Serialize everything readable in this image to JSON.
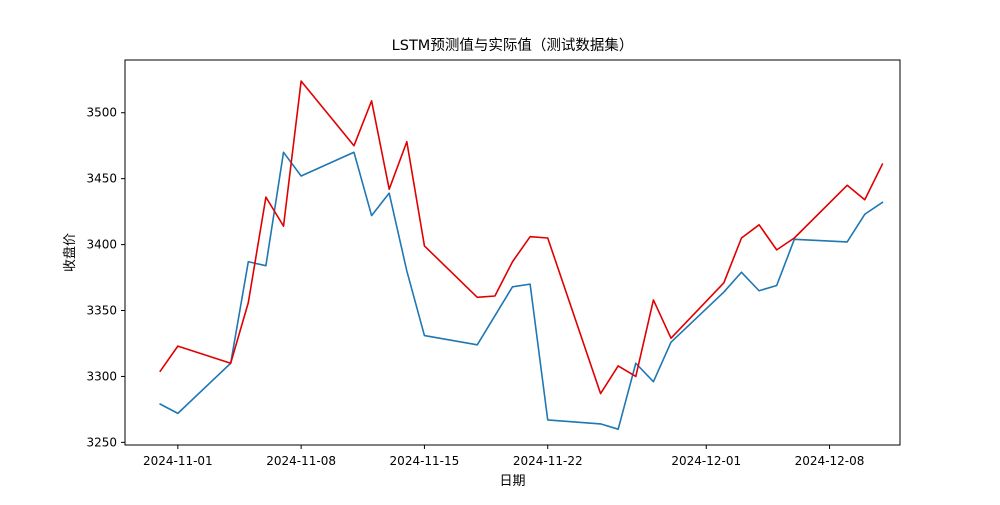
{
  "chart_data": {
    "type": "line",
    "title": "LSTM预测值与实际值（测试数据集）",
    "xlabel": "日期",
    "ylabel": "收盘价",
    "x_axis_type": "date",
    "xlim": [
      "2024-10-29",
      "2024-12-12"
    ],
    "ylim": [
      3248,
      3540
    ],
    "xticks": [
      "2024-11-01",
      "2024-11-08",
      "2024-11-15",
      "2024-11-22",
      "2024-12-01",
      "2024-12-08"
    ],
    "yticks": [
      3250,
      3300,
      3350,
      3400,
      3450,
      3500
    ],
    "grid": false,
    "legend": "none",
    "x": [
      "2024-10-31",
      "2024-11-01",
      "2024-11-04",
      "2024-11-05",
      "2024-11-06",
      "2024-11-07",
      "2024-11-08",
      "2024-11-11",
      "2024-11-12",
      "2024-11-13",
      "2024-11-14",
      "2024-11-15",
      "2024-11-18",
      "2024-11-19",
      "2024-11-20",
      "2024-11-21",
      "2024-11-22",
      "2024-11-25",
      "2024-11-26",
      "2024-11-27",
      "2024-11-28",
      "2024-11-29",
      "2024-12-02",
      "2024-12-03",
      "2024-12-04",
      "2024-12-05",
      "2024-12-06",
      "2024-12-09",
      "2024-12-10",
      "2024-12-11"
    ],
    "series": [
      {
        "color": "#1f77b4",
        "values": [
          3279,
          3272,
          3310,
          3387,
          3384,
          3470,
          3452,
          3470,
          3422,
          3439,
          3380,
          3331,
          3324,
          3346,
          3368,
          3370,
          3267,
          3264,
          3260,
          3310,
          3296,
          3326,
          3364,
          3379,
          3365,
          3369,
          3404,
          3402,
          3423,
          3432
        ]
      },
      {
        "color": "#e00000",
        "values": [
          3304,
          3323,
          3310,
          3356,
          3436,
          3414,
          3524,
          3475,
          3509,
          3442,
          3478,
          3399,
          3360,
          3361,
          3387,
          3406,
          3405,
          3287,
          3308,
          3300,
          3358,
          3329,
          3371,
          3405,
          3415,
          3396,
          3405,
          3445,
          3434,
          3461
        ]
      }
    ]
  }
}
